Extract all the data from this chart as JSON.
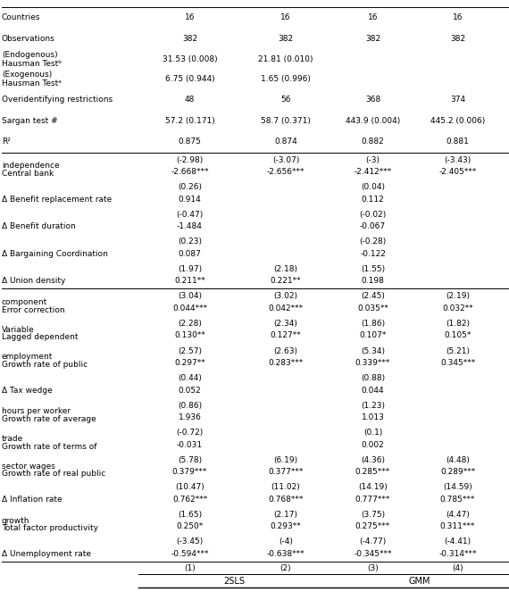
{
  "headers_top": [
    "2SLS",
    "GMM"
  ],
  "headers_sub": [
    "(1)",
    "(2)",
    "(3)",
    "(4)"
  ],
  "rows": [
    {
      "label": [
        "Δ Unemployment rate"
      ],
      "vals": [
        [
          "-0.594***",
          "-0.638***",
          "-0.345***",
          "-0.314***"
        ],
        [
          "(-3.45)",
          "(-4)",
          "(-4.77)",
          "(-4.41)"
        ]
      ],
      "sep_after": false,
      "single": false
    },
    {
      "label": [
        "Total factor productivity",
        "growth"
      ],
      "vals": [
        [
          "0.250*",
          "0.293**",
          "0.275***",
          "0.311***"
        ],
        [
          "(1.65)",
          "(2.17)",
          "(3.75)",
          "(4.47)"
        ]
      ],
      "sep_after": false,
      "single": false
    },
    {
      "label": [
        "Δ Inflation rate"
      ],
      "vals": [
        [
          "0.762***",
          "0.768***",
          "0.777***",
          "0.785***"
        ],
        [
          "(10.47)",
          "(11.02)",
          "(14.19)",
          "(14.59)"
        ]
      ],
      "sep_after": false,
      "single": false
    },
    {
      "label": [
        "Growth rate of real public",
        "sector wages"
      ],
      "vals": [
        [
          "0.379***",
          "0.377***",
          "0.285***",
          "0.289***"
        ],
        [
          "(5.78)",
          "(6.19)",
          "(4.36)",
          "(4.48)"
        ]
      ],
      "sep_after": false,
      "single": false
    },
    {
      "label": [
        "Growth rate of terms of",
        "trade"
      ],
      "vals": [
        [
          "-0.031",
          "",
          "0.002",
          ""
        ],
        [
          "(-0.72)",
          "",
          "(0.1)",
          ""
        ]
      ],
      "sep_after": false,
      "single": false
    },
    {
      "label": [
        "Growth rate of average",
        "hours per worker"
      ],
      "vals": [
        [
          "1.936",
          "",
          "1.013",
          ""
        ],
        [
          "(0.86)",
          "",
          "(1.23)",
          ""
        ]
      ],
      "sep_after": false,
      "single": false
    },
    {
      "label": [
        "Δ Tax wedge"
      ],
      "vals": [
        [
          "0.052",
          "",
          "0.044",
          ""
        ],
        [
          "(0.44)",
          "",
          "(0.88)",
          ""
        ]
      ],
      "sep_after": false,
      "single": false
    },
    {
      "label": [
        "Growth rate of public",
        "employment"
      ],
      "vals": [
        [
          "0.297**",
          "0.283***",
          "0.339***",
          "0.345***"
        ],
        [
          "(2.57)",
          "(2.63)",
          "(5.34)",
          "(5.21)"
        ]
      ],
      "sep_after": false,
      "single": false
    },
    {
      "label": [
        "Lagged dependent",
        "Variable"
      ],
      "vals": [
        [
          "0.130**",
          "0.127**",
          "0.107*",
          "0.105*"
        ],
        [
          "(2.28)",
          "(2.34)",
          "(1.86)",
          "(1.82)"
        ]
      ],
      "sep_after": false,
      "single": false
    },
    {
      "label": [
        "Error correction",
        "component"
      ],
      "vals": [
        [
          "0.044***",
          "0.042***",
          "0.035**",
          "0.032**"
        ],
        [
          "(3.04)",
          "(3.02)",
          "(2.45)",
          "(2.19)"
        ]
      ],
      "sep_after": true,
      "single": false
    },
    {
      "label": [
        "Δ Union density"
      ],
      "vals": [
        [
          "0.211**",
          "0.221**",
          "0.198",
          ""
        ],
        [
          "(1.97)",
          "(2.18)",
          "(1.55)",
          ""
        ]
      ],
      "sep_after": false,
      "single": false
    },
    {
      "label": [
        "Δ Bargaining Coordination"
      ],
      "vals": [
        [
          "0.087",
          "",
          "-0.122",
          ""
        ],
        [
          "(0.23)",
          "",
          "(-0.28)",
          ""
        ]
      ],
      "sep_after": false,
      "single": false
    },
    {
      "label": [
        "Δ Benefit duration"
      ],
      "vals": [
        [
          "-1.484",
          "",
          "-0.067",
          ""
        ],
        [
          "(-0.47)",
          "",
          "(-0.02)",
          ""
        ]
      ],
      "sep_after": false,
      "single": false
    },
    {
      "label": [
        "Δ Benefit replacement rate"
      ],
      "vals": [
        [
          "0.914",
          "",
          "0.112",
          ""
        ],
        [
          "(0.26)",
          "",
          "(0.04)",
          ""
        ]
      ],
      "sep_after": false,
      "single": false
    },
    {
      "label": [
        "Central bank",
        "independence"
      ],
      "vals": [
        [
          "-2.668***",
          "-2.656***",
          "-2.412***",
          "-2.405***"
        ],
        [
          "(-2.98)",
          "(-3.07)",
          "(-3)",
          "(-3.43)"
        ]
      ],
      "sep_after": true,
      "single": false
    },
    {
      "label": [
        "R²"
      ],
      "vals": [
        [
          "0.875",
          "0.874",
          "0.882",
          "0.881"
        ]
      ],
      "sep_after": false,
      "single": true
    },
    {
      "label": [
        "Sargan test #"
      ],
      "vals": [
        [
          "57.2 (0.171)",
          "58.7 (0.371)",
          "443.9 (0.004)",
          "445.2 (0.006)"
        ]
      ],
      "sep_after": false,
      "single": true
    },
    {
      "label": [
        "Overidentifying restrictions"
      ],
      "vals": [
        [
          "48",
          "56",
          "368",
          "374"
        ]
      ],
      "sep_after": false,
      "single": true
    },
    {
      "label": [
        "Hausman Testᵃ",
        "(Exogenous)"
      ],
      "vals": [
        [
          "6.75 (0.944)",
          "1.65 (0.996)",
          "",
          ""
        ]
      ],
      "sep_after": false,
      "single": true
    },
    {
      "label": [
        "Hausman Testᵇ",
        "(Endogenous)"
      ],
      "vals": [
        [
          "31.53 (0.008)",
          "21.81 (0.010)",
          "",
          ""
        ]
      ],
      "sep_after": false,
      "single": true
    },
    {
      "label": [
        "Observations"
      ],
      "vals": [
        [
          "382",
          "382",
          "382",
          "382"
        ]
      ],
      "sep_after": false,
      "single": true
    },
    {
      "label": [
        "Countries"
      ],
      "vals": [
        [
          "16",
          "16",
          "16",
          "16"
        ]
      ],
      "sep_after": false,
      "single": true
    }
  ]
}
